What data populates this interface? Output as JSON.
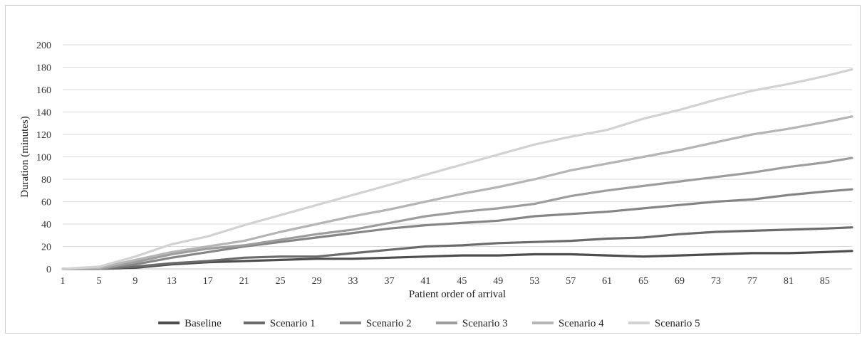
{
  "chart_data": {
    "type": "line",
    "title": "",
    "xlabel": "Patient order of arrival",
    "ylabel": "Duration (minutes)",
    "x_range": [
      1,
      88
    ],
    "x_tick_labels": [
      1,
      5,
      9,
      13,
      17,
      21,
      25,
      29,
      33,
      37,
      41,
      45,
      49,
      53,
      57,
      61,
      65,
      69,
      73,
      77,
      81,
      85
    ],
    "ylim": [
      0,
      200
    ],
    "y_tick_labels": [
      0,
      20,
      40,
      60,
      80,
      100,
      120,
      140,
      160,
      180,
      200
    ],
    "grid": "horizontal",
    "legend_position": "bottom",
    "series": [
      {
        "name": "Baseline",
        "color": "#4d4d4d",
        "points": [
          [
            1,
            0
          ],
          [
            5,
            0
          ],
          [
            9,
            1
          ],
          [
            13,
            4
          ],
          [
            17,
            6
          ],
          [
            21,
            7
          ],
          [
            25,
            8
          ],
          [
            29,
            9
          ],
          [
            33,
            9
          ],
          [
            37,
            10
          ],
          [
            41,
            11
          ],
          [
            45,
            12
          ],
          [
            49,
            12
          ],
          [
            53,
            13
          ],
          [
            57,
            13
          ],
          [
            61,
            12
          ],
          [
            65,
            11
          ],
          [
            69,
            12
          ],
          [
            73,
            13
          ],
          [
            77,
            14
          ],
          [
            81,
            14
          ],
          [
            85,
            15
          ],
          [
            88,
            16
          ]
        ]
      },
      {
        "name": "Scenario 1",
        "color": "#6b6b6b",
        "points": [
          [
            1,
            0
          ],
          [
            5,
            0
          ],
          [
            9,
            2
          ],
          [
            13,
            5
          ],
          [
            17,
            7
          ],
          [
            21,
            10
          ],
          [
            25,
            11
          ],
          [
            29,
            11
          ],
          [
            33,
            14
          ],
          [
            37,
            17
          ],
          [
            41,
            20
          ],
          [
            45,
            21
          ],
          [
            49,
            23
          ],
          [
            53,
            24
          ],
          [
            57,
            25
          ],
          [
            61,
            27
          ],
          [
            65,
            28
          ],
          [
            69,
            31
          ],
          [
            73,
            33
          ],
          [
            77,
            34
          ],
          [
            81,
            35
          ],
          [
            85,
            36
          ],
          [
            88,
            37
          ]
        ]
      },
      {
        "name": "Scenario 2",
        "color": "#858585",
        "points": [
          [
            1,
            0
          ],
          [
            5,
            0
          ],
          [
            9,
            4
          ],
          [
            13,
            10
          ],
          [
            17,
            15
          ],
          [
            21,
            20
          ],
          [
            25,
            24
          ],
          [
            29,
            28
          ],
          [
            33,
            32
          ],
          [
            37,
            36
          ],
          [
            41,
            39
          ],
          [
            45,
            41
          ],
          [
            49,
            43
          ],
          [
            53,
            47
          ],
          [
            57,
            49
          ],
          [
            61,
            51
          ],
          [
            65,
            54
          ],
          [
            69,
            57
          ],
          [
            73,
            60
          ],
          [
            77,
            62
          ],
          [
            81,
            66
          ],
          [
            85,
            69
          ],
          [
            88,
            71
          ]
        ]
      },
      {
        "name": "Scenario 3",
        "color": "#9d9d9d",
        "points": [
          [
            1,
            0
          ],
          [
            5,
            0
          ],
          [
            9,
            6
          ],
          [
            13,
            13
          ],
          [
            17,
            18
          ],
          [
            21,
            21
          ],
          [
            25,
            26
          ],
          [
            29,
            31
          ],
          [
            33,
            35
          ],
          [
            37,
            41
          ],
          [
            41,
            47
          ],
          [
            45,
            51
          ],
          [
            49,
            54
          ],
          [
            53,
            58
          ],
          [
            57,
            65
          ],
          [
            61,
            70
          ],
          [
            65,
            74
          ],
          [
            69,
            78
          ],
          [
            73,
            82
          ],
          [
            77,
            86
          ],
          [
            81,
            91
          ],
          [
            85,
            95
          ],
          [
            88,
            99
          ]
        ]
      },
      {
        "name": "Scenario 4",
        "color": "#b5b5b5",
        "points": [
          [
            1,
            0
          ],
          [
            5,
            1
          ],
          [
            9,
            8
          ],
          [
            13,
            15
          ],
          [
            17,
            20
          ],
          [
            21,
            25
          ],
          [
            25,
            33
          ],
          [
            29,
            40
          ],
          [
            33,
            47
          ],
          [
            37,
            53
          ],
          [
            41,
            60
          ],
          [
            45,
            67
          ],
          [
            49,
            73
          ],
          [
            53,
            80
          ],
          [
            57,
            88
          ],
          [
            61,
            94
          ],
          [
            65,
            100
          ],
          [
            69,
            106
          ],
          [
            73,
            113
          ],
          [
            77,
            120
          ],
          [
            81,
            125
          ],
          [
            85,
            131
          ],
          [
            88,
            136
          ]
        ]
      },
      {
        "name": "Scenario 5",
        "color": "#d2d2d2",
        "points": [
          [
            1,
            0
          ],
          [
            5,
            2
          ],
          [
            9,
            11
          ],
          [
            13,
            22
          ],
          [
            17,
            29
          ],
          [
            21,
            39
          ],
          [
            25,
            48
          ],
          [
            29,
            57
          ],
          [
            33,
            66
          ],
          [
            37,
            75
          ],
          [
            41,
            84
          ],
          [
            45,
            93
          ],
          [
            49,
            102
          ],
          [
            53,
            111
          ],
          [
            57,
            118
          ],
          [
            61,
            124
          ],
          [
            65,
            134
          ],
          [
            69,
            142
          ],
          [
            73,
            151
          ],
          [
            77,
            159
          ],
          [
            81,
            165
          ],
          [
            85,
            172
          ],
          [
            88,
            178
          ]
        ]
      }
    ]
  }
}
